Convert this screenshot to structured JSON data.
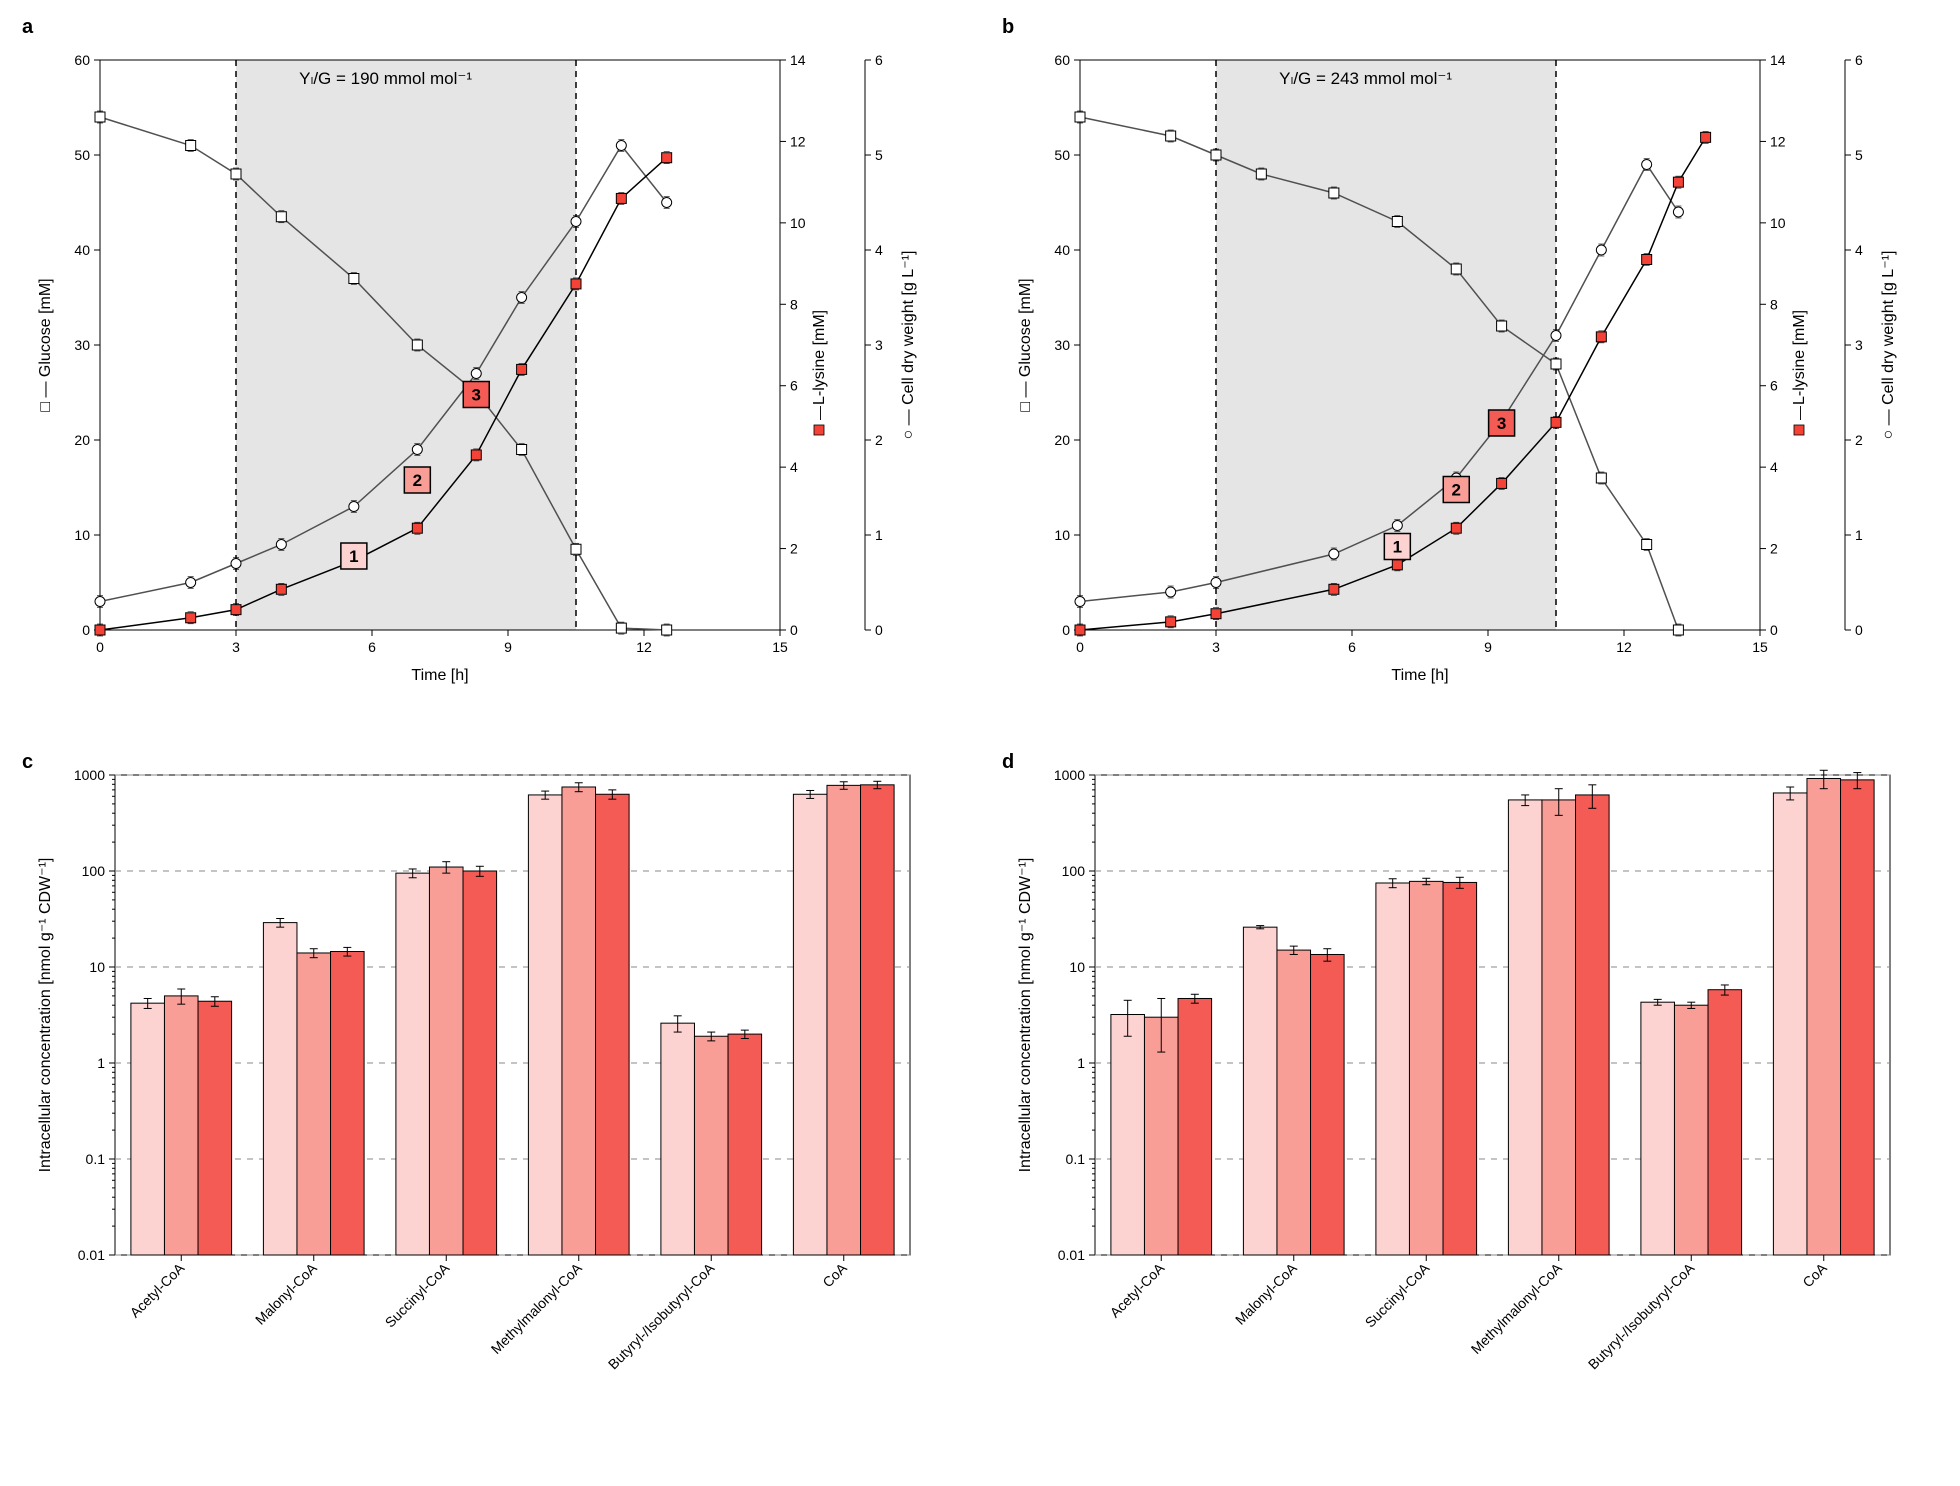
{
  "colors": {
    "bg": "#ffffff",
    "shade": "#e5e5e5",
    "axis": "#000000",
    "grid": "#888888",
    "series": {
      "glucose": {
        "stroke": "#505050",
        "fill": "#ffffff",
        "marker": "square"
      },
      "lysine": {
        "stroke": "#000000",
        "fill": "#f44336",
        "marker": "filled-square"
      },
      "cdw": {
        "stroke": "#505050",
        "fill": "#ffffff",
        "marker": "circle"
      }
    },
    "bars": [
      "#fdd3d1",
      "#f99d97",
      "#f45b55"
    ],
    "bar_stroke": "#000000",
    "marker_boxes": [
      "#fdd3d1",
      "#f99d97",
      "#f45b55"
    ]
  },
  "panel_a": {
    "label": "a",
    "annotation": "Yₗ/G = 190 mmol mol⁻¹",
    "x": {
      "min": 0,
      "max": 15,
      "step": 3,
      "title": "Time [h]"
    },
    "y_left": {
      "min": 0,
      "max": 60,
      "step": 10,
      "title": "Glucose [mM]",
      "legend": "□"
    },
    "y_right1": {
      "min": 0,
      "max": 14,
      "step": 2,
      "title": "L-lysine [mM]",
      "legend": "■",
      "legend_color": "#f44336"
    },
    "y_right2": {
      "min": 0,
      "max": 6,
      "step": 1,
      "title": "Cell dry weight [g L⁻¹]",
      "legend": "○"
    },
    "shade_x": [
      3,
      10.5
    ],
    "markers": [
      {
        "x": 5.6,
        "yc": 1.0,
        "label": "1"
      },
      {
        "x": 7.0,
        "yc": 1.8,
        "label": "2"
      },
      {
        "x": 8.3,
        "yc": 2.7,
        "label": "3"
      }
    ],
    "glucose": [
      [
        0,
        54
      ],
      [
        2,
        51
      ],
      [
        3,
        48
      ],
      [
        4,
        43.5
      ],
      [
        5.6,
        37
      ],
      [
        7,
        30
      ],
      [
        8.3,
        25
      ],
      [
        9.3,
        19
      ],
      [
        10.5,
        8.5
      ],
      [
        11.5,
        0.2
      ],
      [
        12.5,
        0
      ]
    ],
    "lysine": [
      [
        0,
        0
      ],
      [
        2,
        0.3
      ],
      [
        3,
        0.5
      ],
      [
        4,
        1.0
      ],
      [
        5.6,
        1.7
      ],
      [
        7,
        2.5
      ],
      [
        8.3,
        4.3
      ],
      [
        9.3,
        6.4
      ],
      [
        10.5,
        8.5
      ],
      [
        11.5,
        10.6
      ],
      [
        12.5,
        11.6
      ]
    ],
    "cdw": [
      [
        0,
        0.3
      ],
      [
        2,
        0.5
      ],
      [
        3,
        0.7
      ],
      [
        4,
        0.9
      ],
      [
        5.6,
        1.3
      ],
      [
        7,
        1.9
      ],
      [
        8.3,
        2.7
      ],
      [
        9.3,
        3.5
      ],
      [
        10.5,
        4.3
      ],
      [
        11.5,
        5.1
      ],
      [
        12.5,
        4.5
      ]
    ]
  },
  "panel_b": {
    "label": "b",
    "annotation": "Yₗ/G = 243 mmol mol⁻¹",
    "x": {
      "min": 0,
      "max": 15,
      "step": 3,
      "title": "Time [h]"
    },
    "y_left": {
      "min": 0,
      "max": 60,
      "step": 10,
      "title": "Glucose [mM]",
      "legend": "□"
    },
    "y_right1": {
      "min": 0,
      "max": 14,
      "step": 2,
      "title": "L-lysine [mM]",
      "legend": "■",
      "legend_color": "#f44336"
    },
    "y_right2": {
      "min": 0,
      "max": 6,
      "step": 1,
      "title": "Cell dry weight [g L⁻¹]",
      "legend": "○"
    },
    "shade_x": [
      3,
      10.5
    ],
    "markers": [
      {
        "x": 7.0,
        "yc": 1.1,
        "label": "1"
      },
      {
        "x": 8.3,
        "yc": 1.7,
        "label": "2"
      },
      {
        "x": 9.3,
        "yc": 2.4,
        "label": "3"
      }
    ],
    "glucose": [
      [
        0,
        54
      ],
      [
        2,
        52
      ],
      [
        3,
        50
      ],
      [
        4,
        48
      ],
      [
        5.6,
        46
      ],
      [
        7,
        43
      ],
      [
        8.3,
        38
      ],
      [
        9.3,
        32
      ],
      [
        10.5,
        28
      ],
      [
        11.5,
        16
      ],
      [
        12.5,
        9
      ],
      [
        13.2,
        0
      ]
    ],
    "lysine": [
      [
        0,
        0
      ],
      [
        2,
        0.2
      ],
      [
        3,
        0.4
      ],
      [
        5.6,
        1.0
      ],
      [
        7,
        1.6
      ],
      [
        8.3,
        2.5
      ],
      [
        9.3,
        3.6
      ],
      [
        10.5,
        5.1
      ],
      [
        11.5,
        7.2
      ],
      [
        12.5,
        9.1
      ],
      [
        13.2,
        11.0
      ],
      [
        13.8,
        12.1
      ]
    ],
    "cdw": [
      [
        0,
        0.3
      ],
      [
        2,
        0.4
      ],
      [
        3,
        0.5
      ],
      [
        5.6,
        0.8
      ],
      [
        7,
        1.1
      ],
      [
        8.3,
        1.6
      ],
      [
        9.3,
        2.2
      ],
      [
        10.5,
        3.1
      ],
      [
        11.5,
        4.0
      ],
      [
        12.5,
        4.9
      ],
      [
        13.2,
        4.4
      ]
    ]
  },
  "panel_c": {
    "label": "c",
    "y": {
      "min": 0.01,
      "max": 1000,
      "title": "Intracellular concentration [nmol g⁻¹ CDW⁻¹]"
    },
    "categories": [
      "Acetyl-CoA",
      "Malonyl-CoA",
      "Succinyl-CoA",
      "Methylmalonyl-CoA",
      "Butyryl-/Isobutyryl-CoA",
      "CoA"
    ],
    "data": [
      {
        "vals": [
          4.2,
          5.0,
          4.4
        ],
        "err": [
          0.5,
          0.9,
          0.5
        ]
      },
      {
        "vals": [
          29,
          14,
          14.5
        ],
        "err": [
          3,
          1.5,
          1.5
        ]
      },
      {
        "vals": [
          95,
          110,
          100
        ],
        "err": [
          10,
          15,
          12
        ]
      },
      {
        "vals": [
          620,
          750,
          630
        ],
        "err": [
          60,
          80,
          70
        ]
      },
      {
        "vals": [
          2.6,
          1.9,
          2.0
        ],
        "err": [
          0.5,
          0.2,
          0.2
        ]
      },
      {
        "vals": [
          630,
          780,
          790
        ],
        "err": [
          60,
          70,
          70
        ]
      }
    ]
  },
  "panel_d": {
    "label": "d",
    "y": {
      "min": 0.01,
      "max": 1000,
      "title": "Intracellular concentration [nmol g⁻¹ CDW⁻¹]"
    },
    "categories": [
      "Acetyl-CoA",
      "Malonyl-CoA",
      "Succinyl-CoA",
      "Methylmalonyl-CoA",
      "Butyryl-/Isobutyryl-CoA",
      "CoA"
    ],
    "data": [
      {
        "vals": [
          3.2,
          3.0,
          4.7
        ],
        "err": [
          1.3,
          1.7,
          0.5
        ]
      },
      {
        "vals": [
          26,
          15,
          13.5
        ],
        "err": [
          1,
          1.5,
          2
        ]
      },
      {
        "vals": [
          75,
          78,
          76
        ],
        "err": [
          8,
          6,
          10
        ]
      },
      {
        "vals": [
          550,
          550,
          620
        ],
        "err": [
          70,
          170,
          170
        ]
      },
      {
        "vals": [
          4.3,
          4.0,
          5.8
        ],
        "err": [
          0.3,
          0.3,
          0.7
        ]
      },
      {
        "vals": [
          650,
          920,
          890
        ],
        "err": [
          100,
          200,
          170
        ]
      }
    ]
  }
}
